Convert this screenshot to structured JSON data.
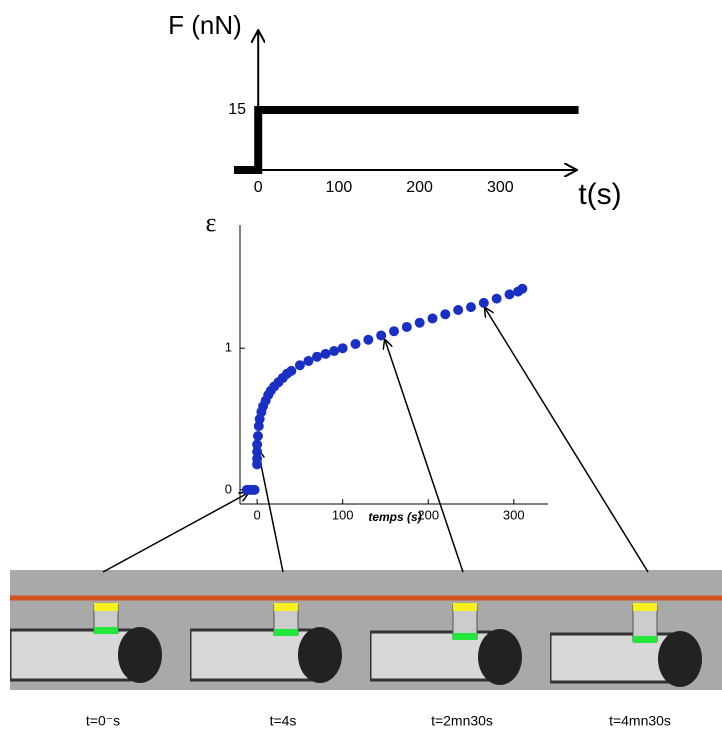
{
  "chart_data": [
    {
      "type": "line",
      "ylabel": "F (nN)",
      "xlabel": "t(s)",
      "xlim": [
        -30,
        400
      ],
      "ylim": [
        0,
        35
      ],
      "xticks": [
        0,
        100,
        200,
        300
      ],
      "yticks": [
        15
      ],
      "series": [
        {
          "color": "#000000",
          "x": [
            -30,
            0,
            0,
            397
          ],
          "values": [
            0,
            0,
            15,
            15
          ]
        }
      ]
    },
    {
      "type": "scatter",
      "ylabel": "ε",
      "xlabel": "temps (s)",
      "xlim": [
        -20,
        340
      ],
      "ylim": [
        -0.1,
        1.87
      ],
      "xticks": [
        0,
        100,
        200,
        300
      ],
      "yticks": [
        0,
        1
      ],
      "series": [
        {
          "color": "#1a2fc4",
          "x": [
            -12,
            -9,
            -6,
            -3,
            0,
            0,
            0,
            0,
            1,
            2,
            3,
            5,
            7,
            10,
            13,
            16,
            20,
            25,
            30,
            35,
            40,
            50,
            60,
            70,
            80,
            90,
            100,
            115,
            130,
            145,
            160,
            175,
            190,
            205,
            220,
            235,
            250,
            265,
            280,
            295,
            305,
            310
          ],
          "values": [
            0,
            0,
            0,
            0,
            0.18,
            0.22,
            0.27,
            0.32,
            0.38,
            0.45,
            0.5,
            0.55,
            0.59,
            0.63,
            0.67,
            0.7,
            0.73,
            0.76,
            0.79,
            0.82,
            0.84,
            0.88,
            0.91,
            0.94,
            0.96,
            0.98,
            1.0,
            1.03,
            1.06,
            1.09,
            1.12,
            1.15,
            1.18,
            1.21,
            1.24,
            1.27,
            1.29,
            1.32,
            1.35,
            1.38,
            1.4,
            1.42
          ]
        }
      ]
    }
  ],
  "images": {
    "captions": [
      "t=0⁻s",
      "t=4s",
      "t=2mn30s",
      "t=4mn30s"
    ]
  }
}
